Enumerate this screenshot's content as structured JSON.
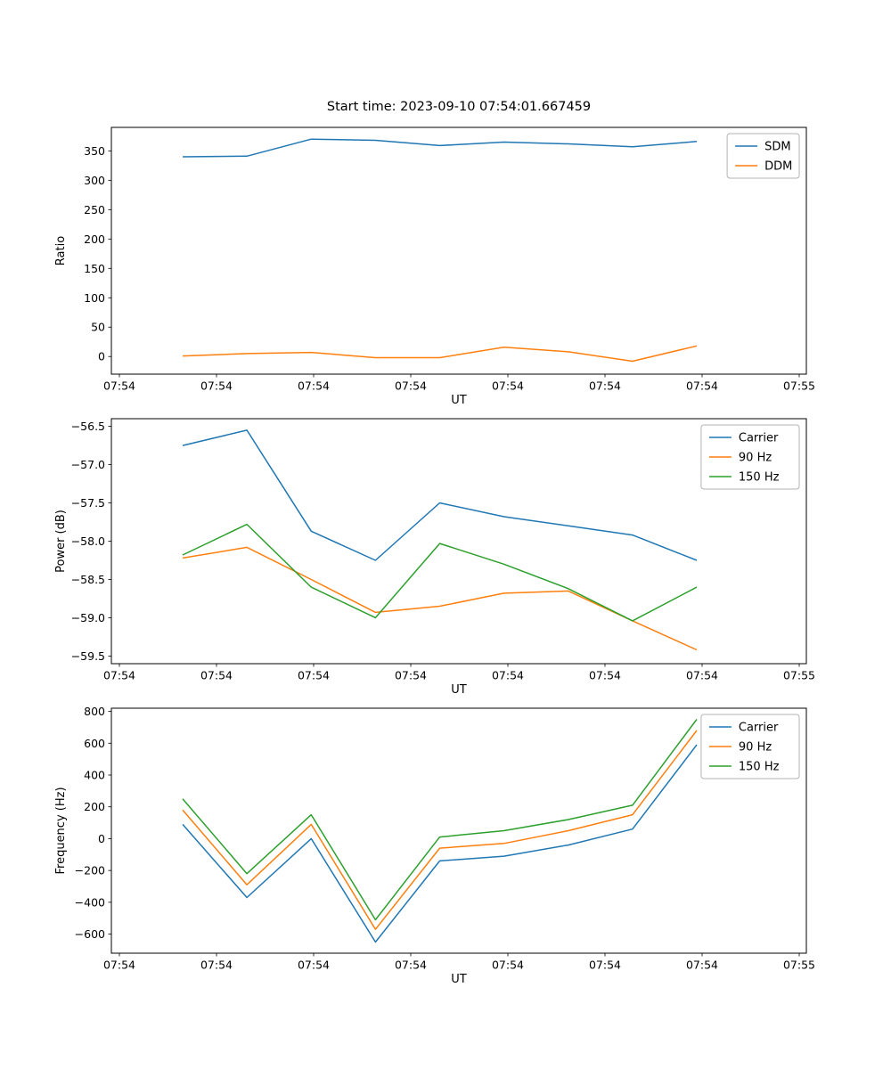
{
  "figure": {
    "title": "Start time: 2023-09-10 07:54:01.667459"
  },
  "colors": {
    "blue": "#1f77b4",
    "orange": "#ff7f0e",
    "green": "#2ca02c",
    "axis": "#000000",
    "legend_border": "#b3b3b3",
    "background": "#ffffff"
  },
  "chart_data": [
    {
      "type": "line",
      "title": "Start time: 2023-09-10 07:54:01.667459",
      "xlabel": "UT",
      "ylabel": "Ratio",
      "x": [
        0,
        1,
        2,
        3,
        4,
        5,
        6,
        7,
        8
      ],
      "xticklabels": [
        "07:54",
        "07:54",
        "07:54",
        "07:54",
        "07:54",
        "07:54",
        "07:54",
        "07:55"
      ],
      "ytick_values": [
        0,
        50,
        100,
        150,
        200,
        250,
        300,
        350
      ],
      "ytick_labels": [
        "0",
        "50",
        "100",
        "150",
        "200",
        "250",
        "300",
        "350"
      ],
      "ylim": [
        -30,
        390
      ],
      "grid": false,
      "legend_position": "upper right",
      "series": [
        {
          "name": "SDM",
          "color": "#1f77b4",
          "values": [
            340,
            341,
            370,
            368,
            359,
            365,
            362,
            357,
            366
          ]
        },
        {
          "name": "DDM",
          "color": "#ff7f0e",
          "values": [
            1,
            5,
            7,
            -2,
            -2,
            16,
            8,
            -8,
            18
          ]
        }
      ]
    },
    {
      "type": "line",
      "xlabel": "UT",
      "ylabel": "Power (dB)",
      "x": [
        0,
        1,
        2,
        3,
        4,
        5,
        6,
        7,
        8
      ],
      "xticklabels": [
        "07:54",
        "07:54",
        "07:54",
        "07:54",
        "07:54",
        "07:54",
        "07:54",
        "07:55"
      ],
      "ytick_values": [
        -59.5,
        -59.0,
        -58.5,
        -58.0,
        -57.5,
        -57.0,
        -56.5
      ],
      "ytick_labels": [
        "−59.5",
        "−59.0",
        "−58.5",
        "−58.0",
        "−57.5",
        "−57.0",
        "−56.5"
      ],
      "ylim": [
        -59.6,
        -56.4
      ],
      "grid": false,
      "legend_position": "upper right",
      "series": [
        {
          "name": "Carrier",
          "color": "#1f77b4",
          "values": [
            -56.75,
            -56.55,
            -57.87,
            -58.25,
            -57.5,
            -57.68,
            -57.8,
            -57.92,
            -58.25
          ]
        },
        {
          "name": "90 Hz",
          "color": "#ff7f0e",
          "values": [
            -58.22,
            -58.08,
            -58.5,
            -58.93,
            -58.85,
            -58.68,
            -58.65,
            -59.04,
            -59.42
          ]
        },
        {
          "name": "150 Hz",
          "color": "#2ca02c",
          "values": [
            -58.18,
            -57.78,
            -58.6,
            -59.0,
            -58.03,
            -58.3,
            -58.62,
            -59.04,
            -58.6
          ]
        }
      ]
    },
    {
      "type": "line",
      "xlabel": "UT",
      "ylabel": "Frequency (Hz)",
      "x": [
        0,
        1,
        2,
        3,
        4,
        5,
        6,
        7,
        8
      ],
      "xticklabels": [
        "07:54",
        "07:54",
        "07:54",
        "07:54",
        "07:54",
        "07:54",
        "07:54",
        "07:55"
      ],
      "ytick_values": [
        -600,
        -400,
        -200,
        0,
        200,
        400,
        600,
        800
      ],
      "ytick_labels": [
        "−600",
        "−400",
        "−200",
        "0",
        "200",
        "400",
        "600",
        "800"
      ],
      "ylim": [
        -720,
        820
      ],
      "grid": false,
      "legend_position": "upper right",
      "series": [
        {
          "name": "Carrier",
          "color": "#1f77b4",
          "values": [
            90,
            -370,
            0,
            -650,
            -140,
            -110,
            -40,
            60,
            590
          ]
        },
        {
          "name": "90 Hz",
          "color": "#ff7f0e",
          "values": [
            180,
            -290,
            90,
            -570,
            -60,
            -30,
            50,
            150,
            680
          ]
        },
        {
          "name": "150 Hz",
          "color": "#2ca02c",
          "values": [
            250,
            -220,
            150,
            -510,
            10,
            50,
            120,
            210,
            750
          ]
        }
      ]
    }
  ]
}
